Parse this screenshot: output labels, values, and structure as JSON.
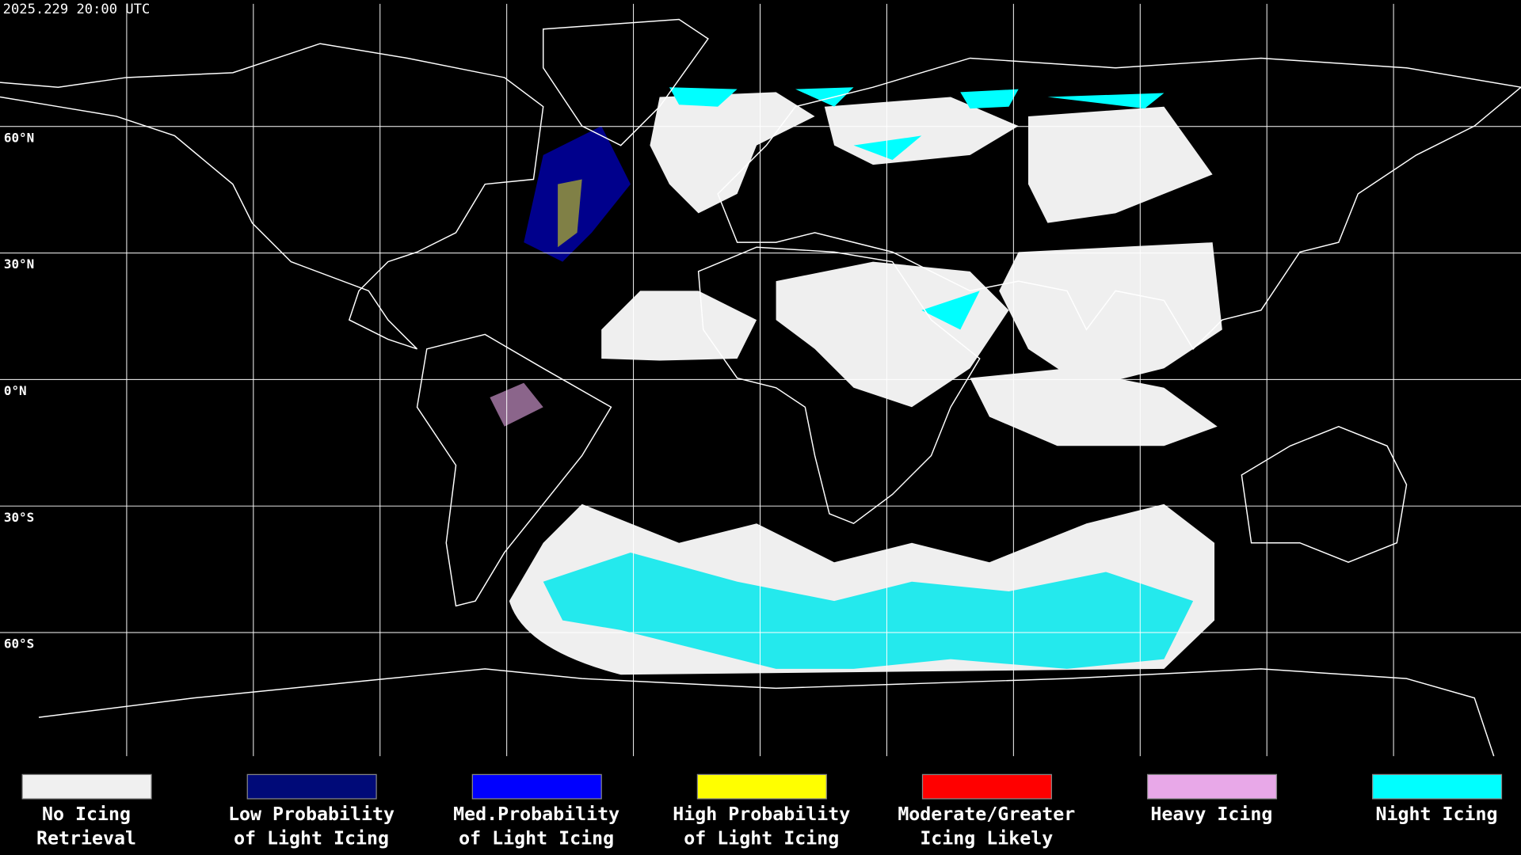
{
  "timestamp": "2025.229 20:00 UTC",
  "latitude_labels": [
    "60°N",
    "30°N",
    "0°N",
    "30°S",
    "60°S"
  ],
  "legend": [
    {
      "color": "#f0f0f0",
      "label": [
        "No Icing",
        "Retrieval"
      ]
    },
    {
      "color": "#000a78",
      "label": [
        "Low Probability",
        "of Light Icing"
      ]
    },
    {
      "color": "#0000ff",
      "label": [
        "Med.Probability",
        "of Light Icing"
      ]
    },
    {
      "color": "#ffff00",
      "label": [
        "High Probability",
        "of Light Icing"
      ]
    },
    {
      "color": "#ff0000",
      "label": [
        "Moderate/Greater",
        "Icing Likely"
      ]
    },
    {
      "color": "#e8a8e8",
      "label": [
        "Heavy Icing"
      ]
    },
    {
      "color": "#00ffff",
      "label": [
        "Night Icing"
      ]
    }
  ]
}
